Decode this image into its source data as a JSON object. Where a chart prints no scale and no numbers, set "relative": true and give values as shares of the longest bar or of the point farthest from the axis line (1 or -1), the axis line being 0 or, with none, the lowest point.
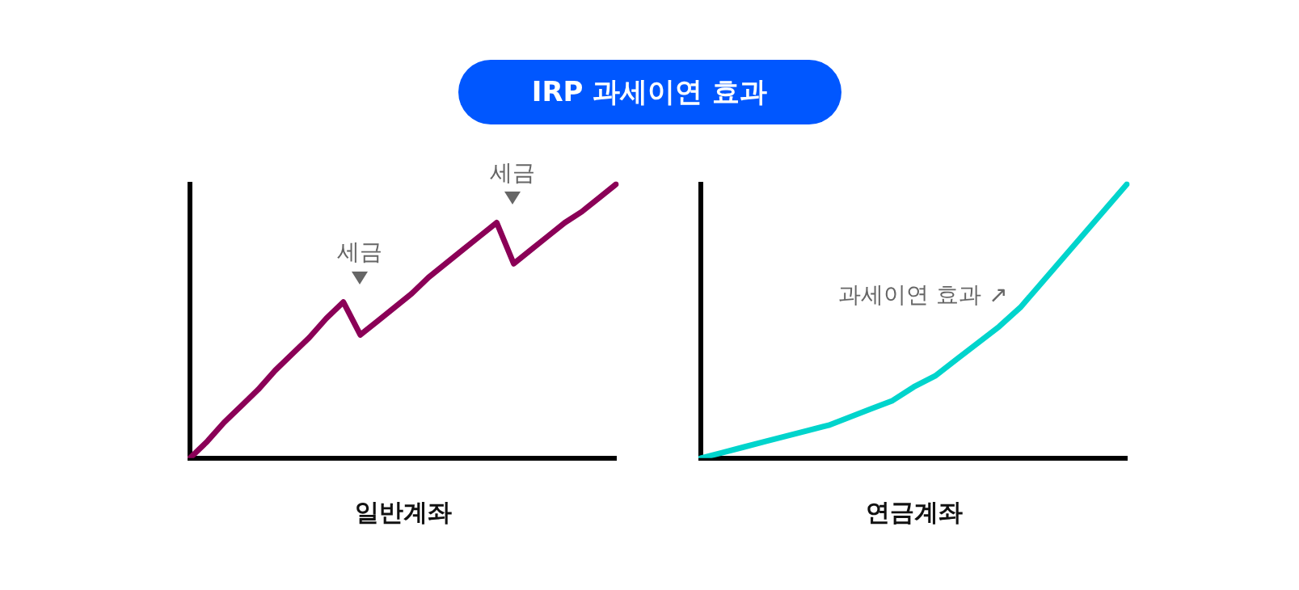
{
  "chart_data": [
    {
      "type": "line",
      "title": "IRP 과세이연 효과",
      "xlabel": "일반계좌",
      "relative": true,
      "grid": false,
      "legend": false,
      "marker": "none",
      "line_style": "solid",
      "categories": [
        null,
        null,
        null,
        null,
        null,
        null,
        null,
        null,
        null,
        null,
        null,
        null,
        null,
        null,
        null,
        null,
        null,
        null,
        null,
        null,
        null,
        null,
        null,
        null,
        null,
        null
      ],
      "series": [
        {
          "color": "#8b0057",
          "values": [
            0,
            0.06,
            0.13,
            0.19,
            0.25,
            0.32,
            0.38,
            0.44,
            0.51,
            0.57,
            0.45,
            0.5,
            0.55,
            0.6,
            0.66,
            0.71,
            0.76,
            0.81,
            0.86,
            0.71,
            0.76,
            0.81,
            0.86,
            0.9,
            0.95,
            1
          ]
        }
      ],
      "annotations": [
        "세금",
        "세금"
      ]
    },
    {
      "type": "line",
      "xlabel": "연금계좌",
      "relative": true,
      "grid": false,
      "legend": false,
      "marker": "none",
      "line_style": "solid",
      "categories": [
        null,
        null,
        null,
        null,
        null,
        null,
        null,
        null,
        null,
        null,
        null,
        null,
        null,
        null,
        null,
        null,
        null,
        null,
        null,
        null,
        null
      ],
      "series": [
        {
          "color": "#00d4cc",
          "values": [
            0,
            0.02,
            0.04,
            0.06,
            0.08,
            0.1,
            0.12,
            0.15,
            0.18,
            0.21,
            0.26,
            0.3,
            0.36,
            0.42,
            0.48,
            0.55,
            0.64,
            0.73,
            0.82,
            0.91,
            1
          ]
        }
      ],
      "annotations": [
        "과세이연 효과 ↗"
      ]
    }
  ]
}
